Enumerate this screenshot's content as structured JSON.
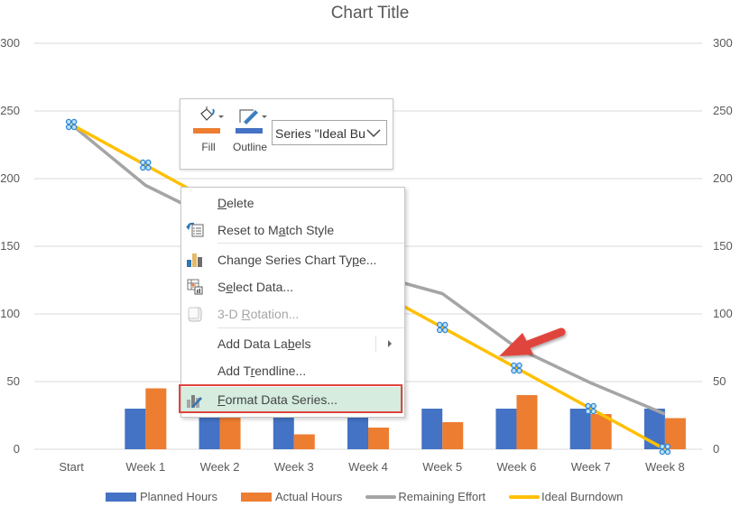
{
  "chart": {
    "title": "Chart Title"
  },
  "mini_toolbar": {
    "fill_label": "Fill",
    "outline_label": "Outline",
    "fill_color": "#ED7D31",
    "outline_color": "#4472C4",
    "series_selector_value": "Series \"Ideal Bu"
  },
  "context_menu": {
    "items": [
      {
        "label": "Delete",
        "icon": "none",
        "enabled": true
      },
      {
        "label": "Reset to Match Style",
        "icon": "reset-style-icon",
        "enabled": true
      },
      {
        "label": "Change Series Chart Type...",
        "icon": "chart-type-icon",
        "enabled": true
      },
      {
        "label": "Select Data...",
        "icon": "select-data-icon",
        "enabled": true
      },
      {
        "label": "3-D Rotation...",
        "icon": "3d-rotation-icon",
        "enabled": false
      },
      {
        "label": "Add Data Labels",
        "icon": "none",
        "enabled": true,
        "submenu": true
      },
      {
        "label": "Add Trendline...",
        "icon": "none",
        "enabled": true
      },
      {
        "label": "Format Data Series...",
        "icon": "format-series-icon",
        "enabled": true,
        "highlighted": true
      }
    ]
  },
  "annotation": {
    "arrow_color": "#E0443E",
    "highlight_box_color": "#E0443E"
  },
  "chart_data": {
    "type": "bar",
    "title": "Chart Title",
    "xlabel": "",
    "ylabel": "",
    "ylim": [
      0,
      300
    ],
    "y_ticks": [
      0,
      50,
      100,
      150,
      200,
      250,
      300
    ],
    "secondary_y_ticks": [
      0,
      50,
      100,
      150,
      200,
      250,
      300
    ],
    "grid": true,
    "legend_position": "bottom",
    "categories": [
      "Start",
      "Week 1",
      "Week 2",
      "Week 3",
      "Week 4",
      "Week 5",
      "Week 6",
      "Week 7",
      "Week 8"
    ],
    "series": [
      {
        "name": "Planned Hours",
        "type": "bar",
        "color": "#4472C4",
        "values": [
          0,
          30,
          30,
          30,
          30,
          30,
          30,
          30,
          30
        ]
      },
      {
        "name": "Actual Hours",
        "type": "bar",
        "color": "#ED7D31",
        "values": [
          0,
          45,
          30,
          11,
          16,
          20,
          40,
          26,
          23
        ]
      },
      {
        "name": "Remaining Effort",
        "type": "line",
        "color": "#A5A5A5",
        "values": [
          240,
          195,
          168,
          150,
          130,
          115,
          75,
          49,
          26
        ]
      },
      {
        "name": "Ideal Burndown",
        "type": "line",
        "color": "#FFC000",
        "values": [
          240,
          210,
          180,
          150,
          120,
          90,
          60,
          30,
          0
        ],
        "selected": true
      }
    ]
  }
}
